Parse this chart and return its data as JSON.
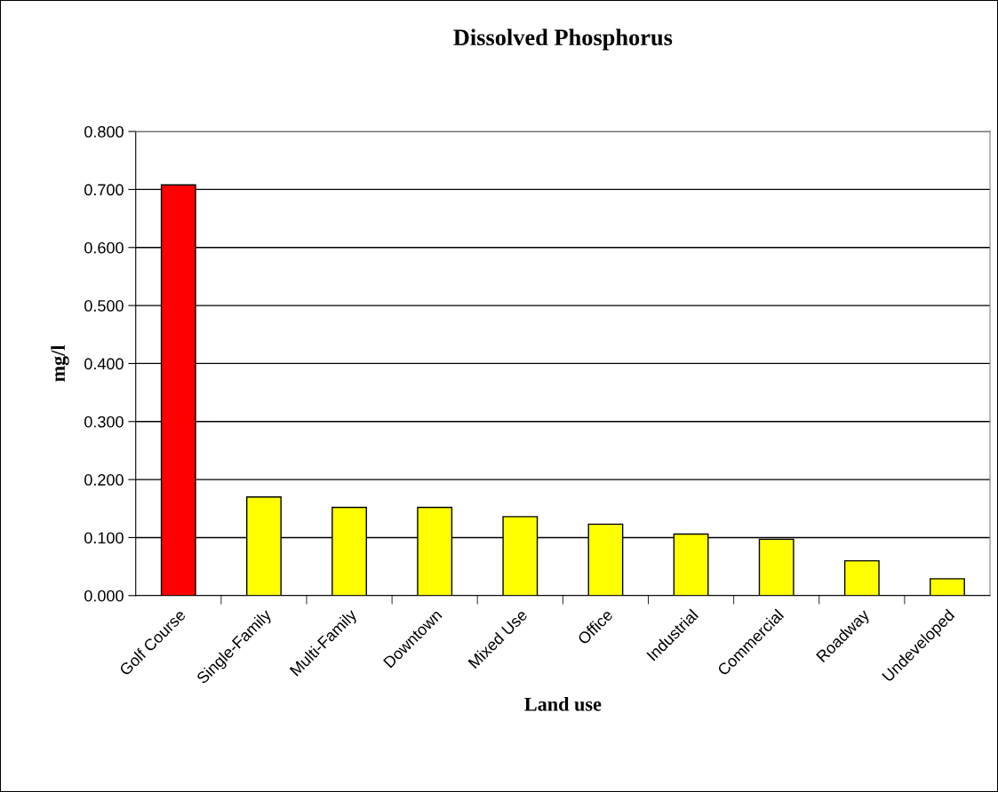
{
  "chart_data": {
    "type": "bar",
    "title": "Dissolved Phosphorus",
    "xlabel": "Land use",
    "ylabel": "mg/l",
    "categories": [
      "Golf Course",
      "Single-Family",
      "Multi-Family",
      "Downtown",
      "Mixed Use",
      "Office",
      "Industrial",
      "Commercial",
      "Roadway",
      "Undeveloped"
    ],
    "values": [
      0.708,
      0.17,
      0.152,
      0.152,
      0.136,
      0.123,
      0.106,
      0.097,
      0.06,
      0.029
    ],
    "colors": [
      "#ff0000",
      "#ffff00",
      "#ffff00",
      "#ffff00",
      "#ffff00",
      "#ffff00",
      "#ffff00",
      "#ffff00",
      "#ffff00",
      "#ffff00"
    ],
    "ylim": [
      0,
      0.8
    ],
    "yticks": [
      {
        "value": 0,
        "label": "0.000"
      },
      {
        "value": 0.1,
        "label": "0.100"
      },
      {
        "value": 0.2,
        "label": "0.200"
      },
      {
        "value": 0.3,
        "label": "0.300"
      },
      {
        "value": 0.4,
        "label": "0.400"
      },
      {
        "value": 0.5,
        "label": "0.500"
      },
      {
        "value": 0.6,
        "label": "0.600"
      },
      {
        "value": 0.7,
        "label": "0.700"
      },
      {
        "value": 0.8,
        "label": "0.800"
      }
    ],
    "grid": "y",
    "legend": false
  }
}
